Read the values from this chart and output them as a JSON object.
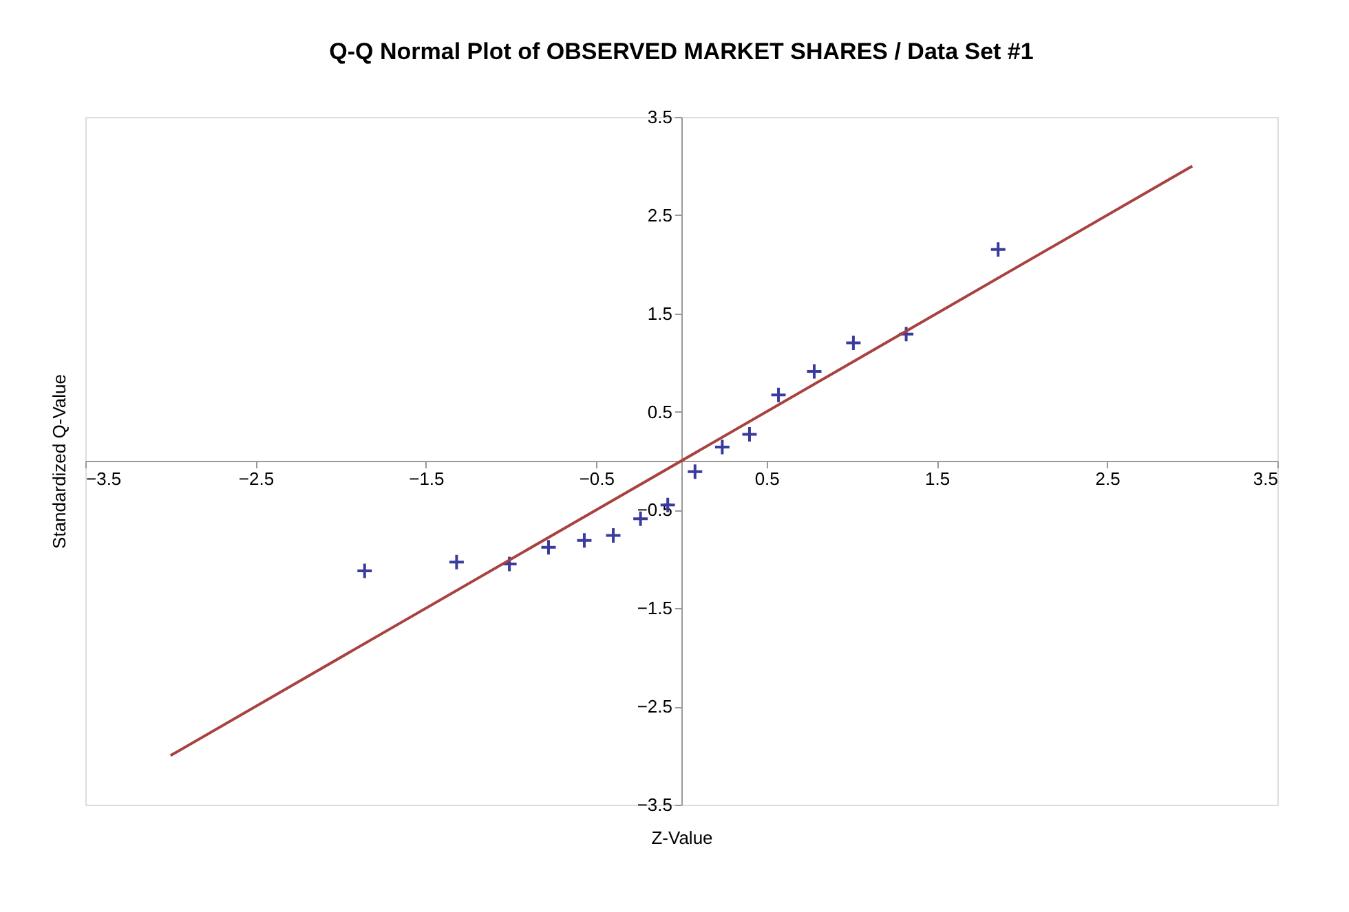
{
  "chart_data": {
    "type": "scatter",
    "title": "Q-Q Normal Plot of OBSERVED MARKET SHARES / Data Set #1",
    "xlabel": "Z-Value",
    "ylabel": "Standardized Q-Value",
    "x": [
      -1.86,
      -1.32,
      -1.01,
      -0.78,
      -0.57,
      -0.4,
      -0.24,
      -0.08,
      0.08,
      0.24,
      0.4,
      0.57,
      0.78,
      1.01,
      1.32,
      1.86
    ],
    "series": [
      {
        "color": "#3b3b9e",
        "marker": "cross",
        "values": [
          -1.12,
          -1.03,
          -1.05,
          -0.88,
          -0.81,
          -0.76,
          -0.59,
          -0.45,
          -0.11,
          0.14,
          0.27,
          0.67,
          0.91,
          1.2,
          1.29,
          2.15
        ]
      },
      {
        "type": "line",
        "color": "#a8423f",
        "x": [
          -3,
          3
        ],
        "values": [
          -3,
          3
        ],
        "line_style": "solid",
        "marker": "none"
      }
    ],
    "xlim": [
      -3.5,
      3.5
    ],
    "ylim": [
      -3.5,
      3.5
    ],
    "xticks": [
      -3.5,
      -2.5,
      -1.5,
      -0.5,
      0.5,
      1.5,
      2.5,
      3.5
    ],
    "yticks": [
      -3.5,
      -2.5,
      -1.5,
      -0.5,
      0.5,
      1.5,
      2.5,
      3.5
    ],
    "grid": false
  }
}
